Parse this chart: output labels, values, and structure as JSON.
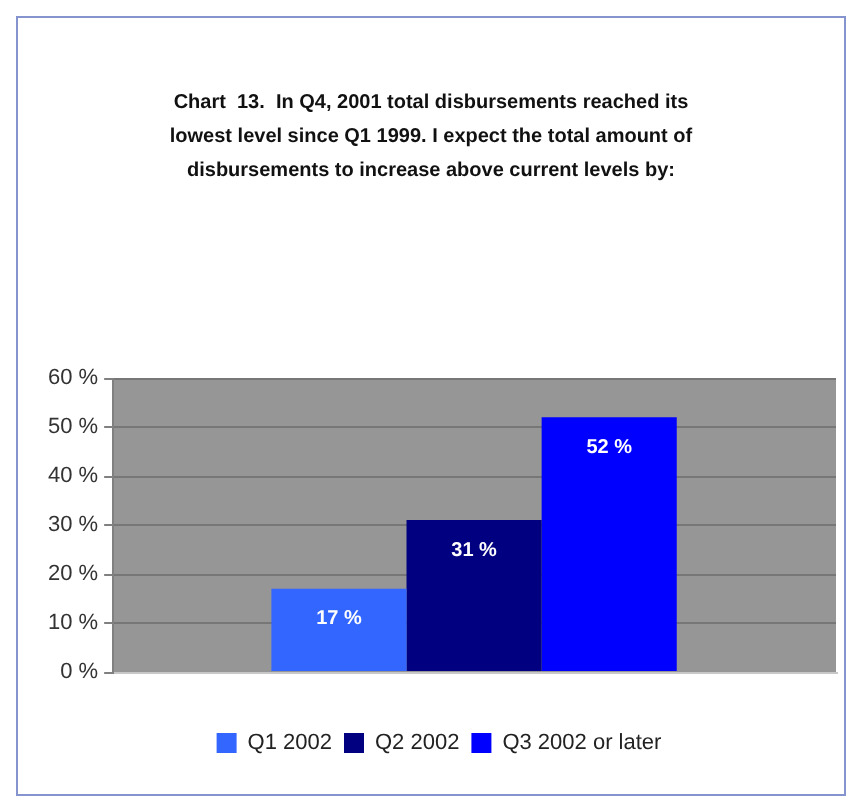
{
  "chart_data": {
    "type": "bar",
    "title": "Chart  13.  In Q4, 2001 total disbursements reached its lowest level since Q1 1999. I expect the total amount of disbursements to increase above current levels by:",
    "categories": [
      null
    ],
    "series": [
      {
        "name": "Q1 2002",
        "color": "#3366ff",
        "values": [
          17
        ],
        "value_labels": [
          "17 %"
        ]
      },
      {
        "name": "Q2 2002",
        "color": "#000080",
        "values": [
          31
        ],
        "value_labels": [
          "31 %"
        ]
      },
      {
        "name": "Q3 2002 or later",
        "color": "#0000ff",
        "values": [
          52
        ],
        "value_labels": [
          "52 %"
        ]
      }
    ],
    "ylim": [
      0,
      60
    ],
    "yticks": [
      {
        "value": 0,
        "label": "0 %"
      },
      {
        "value": 10,
        "label": "10 %"
      },
      {
        "value": 20,
        "label": "20 %"
      },
      {
        "value": 30,
        "label": "30 %"
      },
      {
        "value": 40,
        "label": "40 %"
      },
      {
        "value": 50,
        "label": "50 %"
      },
      {
        "value": 60,
        "label": "60 %"
      }
    ],
    "grid": "y",
    "legend": "bottom"
  }
}
